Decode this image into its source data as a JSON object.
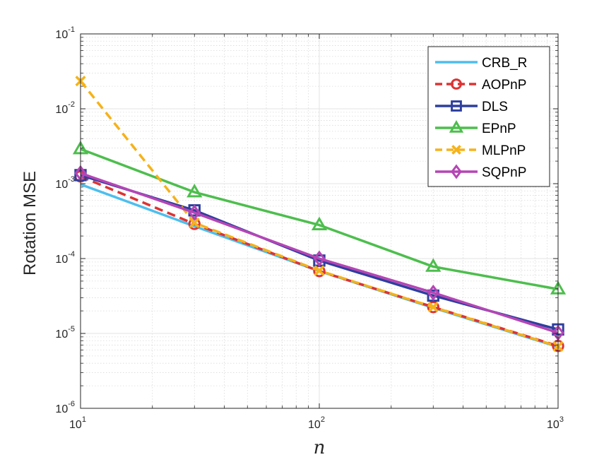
{
  "chart_data": {
    "type": "line",
    "x_scale": "log",
    "y_scale": "log",
    "x": [
      10,
      30,
      100,
      300,
      1000
    ],
    "xlim": [
      10,
      1000
    ],
    "ylim": [
      1e-06,
      0.1
    ],
    "xlabel": "n",
    "ylabel": "Rotation MSE",
    "grid": true,
    "legend_position": "top-right",
    "x_ticks": [
      {
        "base": "10",
        "exp": "1",
        "value": 10
      },
      {
        "base": "10",
        "exp": "2",
        "value": 100
      },
      {
        "base": "10",
        "exp": "3",
        "value": 1000
      }
    ],
    "y_ticks": [
      {
        "base": "10",
        "exp": "-1",
        "value": 0.1
      },
      {
        "base": "10",
        "exp": "-2",
        "value": 0.01
      },
      {
        "base": "10",
        "exp": "-3",
        "value": 0.001
      },
      {
        "base": "10",
        "exp": "-4",
        "value": 0.0001
      },
      {
        "base": "10",
        "exp": "-5",
        "value": 1e-05
      },
      {
        "base": "10",
        "exp": "-6",
        "value": 1e-06
      }
    ],
    "series": [
      {
        "name": "CRB_R",
        "color": "#4DBEEE",
        "dash": "solid",
        "marker": "none",
        "values": [
          0.00098,
          0.00027,
          6.8e-05,
          2.2e-05,
          6.6e-06
        ]
      },
      {
        "name": "AOPnP",
        "color": "#DD3333",
        "dash": "dashed",
        "marker": "circle",
        "values": [
          0.00125,
          0.00029,
          6.8e-05,
          2.25e-05,
          6.8e-06
        ]
      },
      {
        "name": "DLS",
        "color": "#2E3F9E",
        "dash": "solid",
        "marker": "square",
        "values": [
          0.0013,
          0.00044,
          9.4e-05,
          3.2e-05,
          1.13e-05
        ]
      },
      {
        "name": "EPnP",
        "color": "#4DBE4D",
        "dash": "solid",
        "marker": "triangle",
        "values": [
          0.0029,
          0.00077,
          0.00028,
          7.8e-05,
          3.9e-05
        ]
      },
      {
        "name": "MLPnP",
        "color": "#F5B21A",
        "dash": "dashed",
        "marker": "x",
        "values": [
          0.0235,
          0.0003,
          6.9e-05,
          2.25e-05,
          6.7e-06
        ]
      },
      {
        "name": "SQPnP",
        "color": "#B545B5",
        "dash": "solid",
        "marker": "diamond",
        "values": [
          0.00138,
          0.00041,
          0.0001,
          3.5e-05,
          1.02e-05
        ]
      }
    ]
  }
}
